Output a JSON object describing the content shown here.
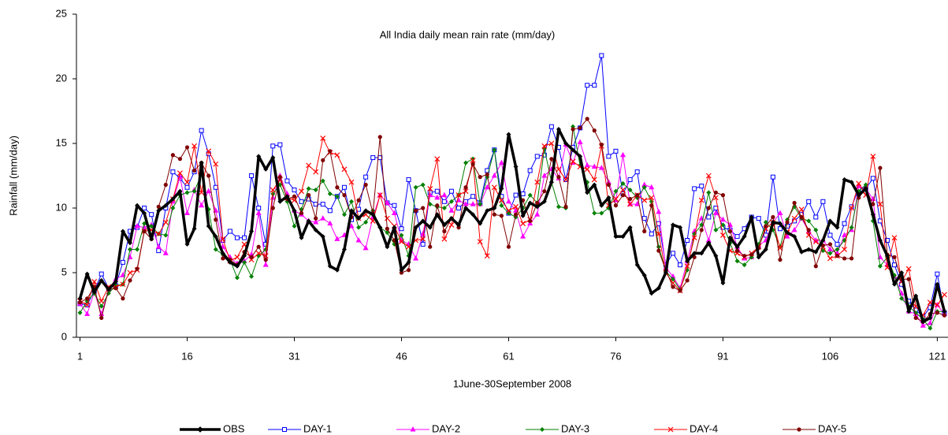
{
  "chart_data": {
    "type": "line",
    "title": "All India daily mean rain rate (mm/day)",
    "x_label": "1June-30September 2008",
    "y_label": "Rainfall (mm/day)",
    "x": [
      1,
      2,
      3,
      4,
      5,
      6,
      7,
      8,
      9,
      10,
      11,
      12,
      13,
      14,
      15,
      16,
      17,
      18,
      19,
      20,
      21,
      22,
      23,
      24,
      25,
      26,
      27,
      28,
      29,
      30,
      31,
      32,
      33,
      34,
      35,
      36,
      37,
      38,
      39,
      40,
      41,
      42,
      43,
      44,
      45,
      46,
      47,
      48,
      49,
      50,
      51,
      52,
      53,
      54,
      55,
      56,
      57,
      58,
      59,
      60,
      61,
      62,
      63,
      64,
      65,
      66,
      67,
      68,
      69,
      70,
      71,
      72,
      73,
      74,
      75,
      76,
      77,
      78,
      79,
      80,
      81,
      82,
      83,
      84,
      85,
      86,
      87,
      88,
      89,
      90,
      91,
      92,
      93,
      94,
      95,
      96,
      97,
      98,
      99,
      100,
      101,
      102,
      103,
      104,
      105,
      106,
      107,
      108,
      109,
      110,
      111,
      112,
      113,
      114,
      115,
      116,
      117,
      118,
      119,
      120,
      121,
      122
    ],
    "xlim": [
      0.5,
      122.5
    ],
    "xticks": [
      1,
      16,
      31,
      46,
      61,
      76,
      91,
      106,
      121
    ],
    "ylim": [
      0,
      25
    ],
    "yticks": [
      0,
      5,
      10,
      15,
      20,
      25
    ],
    "grid": false,
    "legend_position": "bottom",
    "series": [
      {
        "name": "OBS",
        "color": "#000000",
        "marker": "diamond",
        "line_width": 3.5,
        "values": [
          3.0,
          4.9,
          3.5,
          4.4,
          3.7,
          4.3,
          8.2,
          7.3,
          10.2,
          9.6,
          7.6,
          9.8,
          10.2,
          10.7,
          11.3,
          7.2,
          8.4,
          13.5,
          8.6,
          7.8,
          6.5,
          5.8,
          5.5,
          6.3,
          8.2,
          14.0,
          13.0,
          13.9,
          10.5,
          10.9,
          9.8,
          7.7,
          9.0,
          8.3,
          7.8,
          5.5,
          5.2,
          6.8,
          9.8,
          9.2,
          9.8,
          9.5,
          8.5,
          7.0,
          8.5,
          5.2,
          5.8,
          8.5,
          9.0,
          8.5,
          9.5,
          8.7,
          9.2,
          8.7,
          10.0,
          9.5,
          8.8,
          9.8,
          10.0,
          11.5,
          15.7,
          13.2,
          9.4,
          10.4,
          10.1,
          10.5,
          12.0,
          16.1,
          15.0,
          14.5,
          14.0,
          11.2,
          11.8,
          10.2,
          10.8,
          7.8,
          7.8,
          8.5,
          5.6,
          4.8,
          3.4,
          3.8,
          5.0,
          8.7,
          8.5,
          5.9,
          6.5,
          6.5,
          7.3,
          6.3,
          4.2,
          7.7,
          7.0,
          7.8,
          9.3,
          6.2,
          6.8,
          8.9,
          8.8,
          8.1,
          7.8,
          6.6,
          6.8,
          6.6,
          7.5,
          9.0,
          8.5,
          12.2,
          12.0,
          11.0,
          11.5,
          9.5,
          7.5,
          6.3,
          4.1,
          5.0,
          2.0,
          3.2,
          1.2,
          1.5,
          4.1,
          2.0
        ]
      },
      {
        "name": "DAY-1",
        "color": "#0000ff",
        "marker": "square",
        "line_width": 1,
        "values": [
          2.6,
          2.5,
          3.6,
          4.9,
          3.8,
          4.0,
          5.8,
          8.2,
          8.5,
          10.0,
          9.5,
          6.7,
          10.0,
          12.8,
          12.3,
          11.6,
          12.8,
          16.0,
          14.2,
          11.6,
          7.5,
          8.2,
          7.7,
          7.7,
          12.5,
          10.0,
          7.2,
          14.8,
          14.9,
          12.1,
          11.4,
          10.5,
          10.7,
          10.3,
          10.3,
          9.8,
          10.9,
          11.6,
          9.1,
          9.9,
          12.4,
          13.9,
          13.9,
          10.4,
          10.2,
          8.4,
          12.2,
          9.8,
          7.2,
          11.2,
          11.3,
          10.5,
          11.3,
          10.0,
          10.5,
          10.9,
          10.4,
          12.9,
          14.5,
          10.9,
          9.6,
          11.0,
          11.1,
          12.9,
          14.0,
          14.1,
          16.3,
          14.7,
          12.2,
          14.7,
          16.2,
          19.5,
          19.5,
          21.8,
          14.0,
          14.4,
          11.1,
          12.2,
          12.8,
          9.2,
          8.0,
          8.8,
          5.6,
          6.5,
          5.6,
          7.5,
          11.5,
          11.7,
          9.3,
          10.0,
          8.5,
          8.3,
          7.8,
          8.4,
          9.3,
          9.2,
          7.9,
          12.4,
          8.4,
          8.6,
          9.0,
          9.5,
          10.5,
          9.3,
          10.5,
          7.9,
          7.2,
          8.8,
          10.1,
          11.5,
          11.5,
          12.3,
          9.0,
          7.5,
          5.6,
          4.1,
          2.8,
          2.1,
          1.6,
          2.3,
          4.9,
          1.9
        ]
      },
      {
        "name": "DAY-2",
        "color": "#ff00ff",
        "marker": "triangle",
        "line_width": 1,
        "values": [
          2.6,
          1.8,
          3.5,
          1.8,
          3.7,
          4.5,
          4.8,
          6.2,
          8.6,
          8.5,
          8.7,
          7.0,
          6.5,
          10.5,
          12.4,
          9.6,
          11.4,
          10.2,
          11.3,
          9.8,
          7.0,
          6.2,
          5.7,
          5.9,
          6.4,
          9.6,
          5.6,
          10.8,
          12.5,
          11.1,
          9.8,
          9.5,
          9.0,
          8.9,
          9.2,
          8.8,
          7.6,
          7.9,
          8.6,
          7.5,
          6.9,
          9.3,
          11.0,
          10.4,
          9.6,
          7.5,
          7.2,
          6.1,
          8.0,
          11.0,
          10.8,
          11.0,
          9.8,
          10.6,
          10.3,
          10.3,
          10.3,
          11.6,
          12.5,
          13.5,
          10.5,
          9.8,
          7.8,
          8.8,
          9.5,
          12.5,
          13.0,
          12.3,
          14.9,
          13.5,
          15.1,
          13.3,
          13.2,
          13.1,
          12.0,
          10.6,
          14.1,
          10.3,
          10.3,
          11.8,
          11.6,
          9.7,
          5.4,
          4.7,
          3.8,
          5.9,
          8.2,
          9.2,
          7.5,
          9.6,
          9.1,
          8.7,
          7.0,
          6.1,
          6.2,
          7.1,
          7.5,
          8.9,
          9.6,
          7.8,
          8.3,
          9.2,
          8.2,
          7.5,
          7.5,
          6.8,
          6.5,
          7.9,
          8.3,
          11.7,
          11.5,
          10.7,
          6.2,
          5.6,
          4.7,
          3.4,
          2.0,
          1.8,
          0.9,
          1.1,
          2.5,
          1.8
        ]
      },
      {
        "name": "DAY-3",
        "color": "#008000",
        "marker": "diamond",
        "line_width": 1,
        "values": [
          1.9,
          2.8,
          3.4,
          2.4,
          3.4,
          4.0,
          4.1,
          6.8,
          6.8,
          8.8,
          8.6,
          8.0,
          7.9,
          10.0,
          11.0,
          11.2,
          11.3,
          12.6,
          9.9,
          6.8,
          6.4,
          6.0,
          4.6,
          5.8,
          4.7,
          6.3,
          6.8,
          11.1,
          11.8,
          10.5,
          8.6,
          9.9,
          11.5,
          11.4,
          12.1,
          11.1,
          10.9,
          9.5,
          10.5,
          8.5,
          8.9,
          9.8,
          8.5,
          8.1,
          7.2,
          7.9,
          6.3,
          11.6,
          11.8,
          10.3,
          10.1,
          10.0,
          10.5,
          11.0,
          13.5,
          13.8,
          10.3,
          12.4,
          14.5,
          10.2,
          9.6,
          9.3,
          10.0,
          11.0,
          10.4,
          14.6,
          12.0,
          10.1,
          10.0,
          16.3,
          13.3,
          12.0,
          9.6,
          9.6,
          10.0,
          11.3,
          11.9,
          11.4,
          10.8,
          11.6,
          10.5,
          7.0,
          5.1,
          4.5,
          3.7,
          5.2,
          8.0,
          8.7,
          11.2,
          8.3,
          8.7,
          7.3,
          5.9,
          5.6,
          6.2,
          7.2,
          8.9,
          8.3,
          7.0,
          9.1,
          10.1,
          9.2,
          9.0,
          8.3,
          6.7,
          6.5,
          6.8,
          7.5,
          8.5,
          11.3,
          11.8,
          9.0,
          5.5,
          6.2,
          4.8,
          3.0,
          2.4,
          1.9,
          1.4,
          0.7,
          2.0,
          2.0
        ]
      },
      {
        "name": "DAY-4",
        "color": "#ff0000",
        "marker": "cross",
        "line_width": 1,
        "values": [
          2.8,
          2.5,
          4.3,
          2.8,
          3.9,
          3.9,
          4.1,
          5.0,
          5.2,
          8.2,
          8.3,
          8.0,
          8.9,
          10.7,
          12.7,
          12.0,
          14.8,
          11.2,
          14.4,
          13.4,
          7.6,
          5.9,
          6.2,
          7.2,
          6.0,
          6.5,
          6.3,
          11.4,
          12.2,
          10.8,
          10.6,
          11.3,
          13.3,
          12.8,
          15.4,
          14.3,
          14.1,
          13.0,
          12.0,
          9.2,
          9.5,
          9.0,
          11.0,
          9.2,
          8.6,
          7.4,
          7.0,
          7.5,
          7.6,
          11.5,
          13.8,
          7.6,
          8.7,
          11.0,
          11.3,
          13.7,
          7.4,
          6.3,
          11.6,
          10.6,
          9.8,
          10.1,
          8.8,
          9.1,
          12.0,
          14.8,
          15.0,
          13.0,
          12.2,
          13.6,
          13.2,
          13.0,
          12.2,
          14.8,
          10.2,
          10.7,
          11.4,
          10.3,
          11.0,
          10.6,
          10.8,
          8.0,
          5.0,
          4.2,
          3.6,
          5.5,
          7.7,
          10.6,
          12.5,
          10.8,
          7.9,
          6.7,
          6.5,
          6.2,
          6.5,
          7.0,
          8.4,
          8.9,
          6.9,
          8.1,
          9.2,
          9.9,
          7.9,
          7.4,
          7.0,
          6.1,
          6.3,
          6.8,
          10.0,
          11.9,
          11.0,
          14.0,
          10.3,
          5.4,
          7.7,
          4.3,
          5.3,
          2.4,
          1.7,
          2.7,
          2.5,
          3.3
        ]
      },
      {
        "name": "DAY-5",
        "color": "#800000",
        "marker": "circle",
        "line_width": 1,
        "values": [
          2.7,
          3.0,
          3.9,
          1.5,
          3.7,
          3.8,
          3.0,
          4.4,
          5.3,
          8.2,
          7.6,
          10.1,
          11.8,
          14.1,
          13.8,
          14.7,
          12.9,
          13.5,
          12.5,
          9.1,
          6.1,
          6.0,
          5.6,
          6.6,
          6.2,
          7.0,
          6.0,
          10.0,
          12.4,
          10.7,
          10.9,
          9.6,
          11.0,
          9.2,
          13.7,
          14.4,
          11.6,
          11.0,
          9.3,
          10.6,
          11.8,
          9.6,
          15.5,
          8.4,
          7.5,
          5.0,
          5.2,
          9.8,
          10.0,
          7.0,
          10.2,
          8.2,
          9.2,
          8.5,
          11.6,
          13.4,
          12.4,
          12.6,
          9.5,
          9.4,
          7.0,
          9.5,
          10.6,
          9.0,
          10.4,
          11.3,
          13.8,
          12.4,
          10.1,
          16.1,
          16.2,
          16.9,
          16.0,
          14.9,
          11.8,
          10.2,
          11.0,
          10.7,
          11.0,
          8.2,
          10.2,
          6.7,
          5.2,
          3.9,
          3.6,
          4.4,
          6.2,
          8.3,
          10.0,
          11.2,
          11.0,
          8.2,
          6.7,
          6.3,
          6.4,
          6.9,
          8.6,
          9.3,
          6.0,
          8.9,
          10.4,
          9.3,
          8.3,
          5.5,
          7.1,
          7.2,
          6.3,
          6.1,
          6.1,
          10.8,
          11.5,
          10.3,
          13.1,
          6.4,
          6.2,
          4.5,
          4.5,
          1.5,
          1.2,
          1.8,
          1.9,
          1.7
        ]
      }
    ]
  }
}
